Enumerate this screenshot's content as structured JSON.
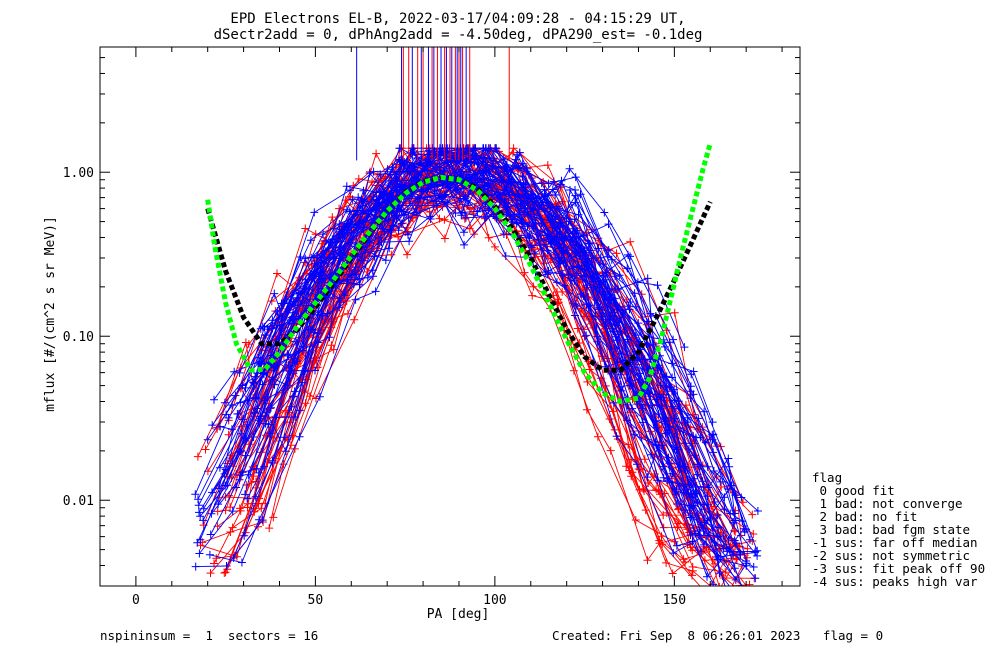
{
  "chart_data": {
    "type": "line",
    "title": "EPD Electrons EL-B, 2022-03-17/04:09:28 - 04:15:29 UT,",
    "subtitle": "dSectr2add = 0, dPhAng2add = -4.50deg, dPA290_est=  -0.1deg",
    "xlabel": "PA [deg]",
    "ylabel": "mflux [#/(cm^2 s sr MeV)]",
    "xlim": [
      -10,
      185
    ],
    "ylim": [
      0.003,
      5.8
    ],
    "yscale": "log",
    "x_ticks": [
      "0",
      "50",
      "100",
      "150"
    ],
    "y_ticks": [
      "0.01",
      "0.10",
      "1.00"
    ],
    "y_tick_values": [
      0.01,
      0.1,
      1.0
    ],
    "x_tick_values": [
      0,
      50,
      100,
      150
    ],
    "colors": {
      "red": "#ff0000",
      "blue": "#0000ff",
      "black": "#000000",
      "green": "#00ff00"
    },
    "series": [
      {
        "color": "black",
        "style": "dashed-thick",
        "x": [
          20,
          25,
          30,
          35,
          40,
          45,
          50,
          55,
          60,
          65,
          70,
          75,
          80,
          85,
          90,
          95,
          100,
          105,
          110,
          115,
          120,
          125,
          130,
          135,
          140,
          145,
          150,
          155,
          160
        ],
        "y": [
          0.6,
          0.25,
          0.13,
          0.09,
          0.09,
          0.11,
          0.15,
          0.21,
          0.3,
          0.42,
          0.58,
          0.75,
          0.88,
          0.93,
          0.9,
          0.8,
          0.62,
          0.45,
          0.3,
          0.18,
          0.11,
          0.075,
          0.062,
          0.062,
          0.08,
          0.13,
          0.22,
          0.38,
          0.66
        ]
      },
      {
        "color": "green",
        "style": "dashed-thick",
        "x": [
          20,
          22,
          25,
          28,
          32,
          36,
          40,
          45,
          50,
          55,
          60,
          65,
          70,
          75,
          80,
          85,
          90,
          95,
          100,
          105,
          110,
          115,
          120,
          125,
          130,
          135,
          140,
          143,
          146,
          149,
          152,
          155,
          158,
          160
        ],
        "y": [
          0.68,
          0.35,
          0.16,
          0.09,
          0.062,
          0.063,
          0.08,
          0.115,
          0.16,
          0.22,
          0.31,
          0.43,
          0.58,
          0.74,
          0.87,
          0.93,
          0.9,
          0.78,
          0.6,
          0.42,
          0.27,
          0.16,
          0.095,
          0.06,
          0.045,
          0.04,
          0.042,
          0.055,
          0.09,
          0.17,
          0.32,
          0.58,
          1.05,
          1.5
        ]
      }
    ],
    "vertical_markers": {
      "x_red": [
        74.5,
        76,
        78.5,
        80,
        82.5,
        84,
        86,
        87.5,
        89,
        90,
        91,
        93,
        104
      ],
      "x_blue": [
        61.5,
        74,
        77,
        79.5,
        81.5,
        83,
        85,
        86.5,
        88,
        89.5,
        90.5,
        92
      ],
      "y_bottom": 1.18
    },
    "noisy_traces": {
      "description_free": true,
      "red_count": 55,
      "blue_count": 55
    },
    "legend": {
      "title": "flag",
      "entries": [
        " 0 good fit",
        " 1 bad: not converge",
        " 2 bad: no fit",
        " 3 bad: bad fgm state",
        "-1 sus: far off median",
        "-2 sus: not symmetric",
        "-3 sus: fit peak off 90",
        "-4 sus: peaks high var"
      ]
    },
    "footer": {
      "left": "nspininsum =  1  sectors = 16",
      "right": "Created: Fri Sep  8 06:26:01 2023   flag = 0"
    }
  }
}
